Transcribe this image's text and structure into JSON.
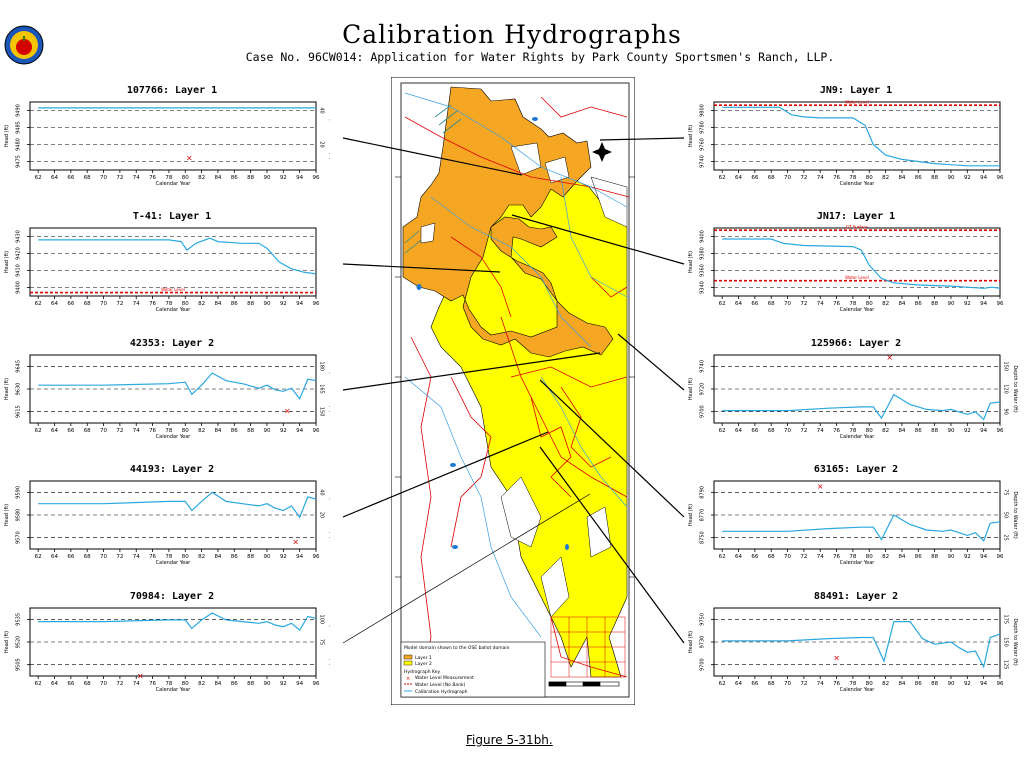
{
  "header": {
    "title": "Calibration Hydrographs",
    "subtitle": "Case No. 96CW014: Application for Water Rights by Park County Sportsmen's Ranch, LLP.",
    "figure_label": "Figure 5-31bh."
  },
  "map_legend": {
    "domain_note": "Model domain shown to the OSE ballot domain",
    "layer1": "Layer 1",
    "layer2": "Layer 2",
    "hydrograph_key": "Hydrograph Key",
    "measurement": "Water Level Measurement",
    "no_bank": "Water Level (No Bank)",
    "calibration": "Calibration Hydrograph"
  },
  "colors": {
    "sim_line": "#2aa8e0",
    "layer1": "#f5a623",
    "layer2": "#ffff00",
    "marker": "#dd0000",
    "water_level": "#dd0000"
  },
  "chart_data": [
    {
      "type": "line",
      "title": "107766: Layer 1",
      "xlabel": "Calendar Year",
      "ylabel": "Head (ft)",
      "ylabel2": "Depth to Water (ft)",
      "xlim": [
        1961,
        1996
      ],
      "x": [
        62,
        64,
        66,
        68,
        70,
        72,
        74,
        76,
        78,
        80,
        82,
        84,
        86,
        88,
        90,
        92,
        94,
        96
      ],
      "ylim": [
        9475,
        9498
      ],
      "yticks": [
        "9475",
        "9480",
        "9485",
        "9490"
      ],
      "yticks2": [
        "",
        "20",
        "",
        "40"
      ],
      "series": [
        {
          "x": [
            1962,
            1970,
            1980,
            1990,
            1996
          ],
          "values": [
            9496,
            9496,
            9496,
            9496,
            9496
          ]
        }
      ],
      "measured": [
        {
          "x": 1980.5,
          "y": 9479
        }
      ],
      "ref_lines": []
    },
    {
      "type": "line",
      "title": "T-41: Layer 1",
      "xlabel": "Calendar Year",
      "ylabel": "Head (ft)",
      "ylabel2": "",
      "xlim": [
        1961,
        1996
      ],
      "x": [
        62,
        64,
        66,
        68,
        70,
        72,
        74,
        76,
        78,
        80,
        82,
        84,
        86,
        88,
        90,
        92,
        94,
        96
      ],
      "ylim": [
        9398,
        9438
      ],
      "yticks": [
        "9400",
        "9410",
        "9420",
        "9430"
      ],
      "yticks2": [],
      "series": [
        {
          "x": [
            1962,
            1968,
            1974,
            1978,
            1979.5,
            1980.2,
            1981.3,
            1983,
            1984,
            1987,
            1989,
            1990,
            1991.5,
            1993,
            1994.5,
            1996
          ],
          "values": [
            9431,
            9431,
            9431,
            9431,
            9430,
            9425,
            9429,
            9432,
            9430,
            9429,
            9429,
            9426,
            9418,
            9414,
            9412,
            9411
          ]
        }
      ],
      "measured": [],
      "ref_lines": [
        {
          "y": 9400,
          "label": "Water Level"
        }
      ]
    },
    {
      "type": "line",
      "title": "42353: Layer 2",
      "xlabel": "Calendar Year",
      "ylabel": "Head (ft)",
      "ylabel2": "Depth to Water (ft)",
      "xlim": [
        1961,
        1996
      ],
      "x": [
        62,
        64,
        66,
        68,
        70,
        72,
        74,
        76,
        78,
        80,
        82,
        84,
        86,
        88,
        90,
        92,
        94,
        96
      ],
      "ylim": [
        9605,
        9650
      ],
      "yticks": [
        "9615",
        "9630",
        "9645"
      ],
      "yticks2": [
        "150",
        "165",
        "180"
      ],
      "series": [
        {
          "x": [
            1962,
            1970,
            1978,
            1980,
            1980.8,
            1982,
            1983.3,
            1985,
            1987,
            1989,
            1990,
            1991,
            1992,
            1993,
            1994,
            1995,
            1996
          ],
          "values": [
            9630,
            9630,
            9631,
            9632,
            9624,
            9630,
            9638,
            9633,
            9631,
            9628,
            9630,
            9627,
            9626,
            9628,
            9621,
            9634,
            9633
          ]
        }
      ],
      "measured": [
        {
          "x": 1992.5,
          "y": 9613
        }
      ],
      "ref_lines": []
    },
    {
      "type": "line",
      "title": "44193: Layer 2",
      "xlabel": "Calendar Year",
      "ylabel": "Head (ft)",
      "ylabel2": "Depth to Water (ft)",
      "xlim": [
        1961,
        1996
      ],
      "x": [
        62,
        64,
        66,
        68,
        70,
        72,
        74,
        76,
        78,
        80,
        82,
        84,
        86,
        88,
        90,
        92,
        94,
        96
      ],
      "ylim": [
        9561,
        9591
      ],
      "yticks": [
        "9570",
        "9580",
        "9590"
      ],
      "yticks2": [
        "",
        "20",
        "40"
      ],
      "series": [
        {
          "x": [
            1962,
            1970,
            1978,
            1980,
            1980.8,
            1982,
            1983.3,
            1985,
            1987,
            1989,
            1990,
            1991,
            1992,
            1993,
            1994,
            1995,
            1996
          ],
          "values": [
            9581,
            9581,
            9582,
            9582,
            9578,
            9582,
            9586,
            9582,
            9581,
            9580,
            9581,
            9579,
            9578,
            9580,
            9575,
            9584,
            9583
          ]
        }
      ],
      "measured": [
        {
          "x": 1993.5,
          "y": 9564
        }
      ],
      "ref_lines": []
    },
    {
      "type": "line",
      "title": "70984: Layer 2",
      "xlabel": "Calendar Year",
      "ylabel": "Head (ft)",
      "ylabel2": "Depth to Water (ft)",
      "xlim": [
        1961,
        1996
      ],
      "x": [
        62,
        64,
        66,
        68,
        70,
        72,
        74,
        76,
        78,
        80,
        82,
        84,
        86,
        88,
        90,
        92,
        94,
        96
      ],
      "ylim": [
        9500,
        9540
      ],
      "yticks": [
        "9505",
        "9520",
        "9535"
      ],
      "yticks2": [
        "",
        "75",
        "100"
      ],
      "series": [
        {
          "x": [
            1962,
            1970,
            1978,
            1980,
            1980.8,
            1982,
            1983.3,
            1985,
            1987,
            1989,
            1990,
            1991,
            1992,
            1993,
            1994,
            1995,
            1996
          ],
          "values": [
            9532,
            9532,
            9533,
            9533,
            9528,
            9533,
            9537,
            9533,
            9532,
            9531,
            9532,
            9530,
            9529,
            9531,
            9527,
            9535,
            9534
          ]
        }
      ],
      "measured": [
        {
          "x": 1974.5,
          "y": 9500
        }
      ],
      "ref_lines": []
    },
    {
      "type": "line",
      "title": "JN9: Layer 1",
      "xlabel": "Calendar Year",
      "ylabel": "Head (ft)",
      "ylabel2": "",
      "xlim": [
        1961,
        1996
      ],
      "x": [
        62,
        64,
        66,
        68,
        70,
        72,
        74,
        76,
        78,
        80,
        82,
        84,
        86,
        88,
        90,
        92,
        94,
        96
      ],
      "ylim": [
        9738,
        9802
      ],
      "yticks": [
        "9740",
        "9760",
        "9780",
        "9800"
      ],
      "yticks2": [],
      "series": [
        {
          "x": [
            1962,
            1969,
            1970.5,
            1972,
            1974,
            1978,
            1979.5,
            1980.5,
            1982,
            1984,
            1986,
            1988,
            1990,
            1992,
            1994,
            1996
          ],
          "values": [
            9797,
            9797,
            9790,
            9788,
            9787,
            9787,
            9780,
            9762,
            9752,
            9748,
            9746,
            9744,
            9743,
            9742,
            9742,
            9742
          ]
        }
      ],
      "measured": [],
      "ref_lines": [
        {
          "y": 9799,
          "label": "Water Level"
        }
      ]
    },
    {
      "type": "line",
      "title": "JN17: Layer 1",
      "xlabel": "Calendar Year",
      "ylabel": "Head (ft)",
      "ylabel2": "",
      "xlim": [
        1961,
        1996
      ],
      "x": [
        62,
        64,
        66,
        68,
        70,
        72,
        74,
        76,
        78,
        80,
        82,
        84,
        86,
        88,
        90,
        92,
        94,
        96
      ],
      "ylim": [
        9340,
        9402
      ],
      "yticks": [
        "9340",
        "9360",
        "9380",
        "9400"
      ],
      "yticks2": [],
      "series": [
        {
          "x": [
            1962,
            1968,
            1969.5,
            1972,
            1978,
            1979,
            1980,
            1981.5,
            1983,
            1986,
            1990,
            1992,
            1994,
            1995,
            1996
          ],
          "values": [
            9392,
            9392,
            9388,
            9386,
            9385,
            9382,
            9368,
            9356,
            9352,
            9350,
            9349,
            9348,
            9347,
            9348,
            9347
          ]
        }
      ],
      "measured": [],
      "ref_lines": [
        {
          "y": 9400,
          "label": "GT Surface"
        },
        {
          "y": 9354,
          "label": "Water Level"
        }
      ]
    },
    {
      "type": "line",
      "title": "125966: Layer 2",
      "xlabel": "Calendar Year",
      "ylabel": "Head (ft)",
      "ylabel2": "Depth to Water (ft)",
      "xlim": [
        1961,
        1996
      ],
      "x": [
        62,
        64,
        66,
        68,
        70,
        72,
        74,
        76,
        78,
        80,
        82,
        84,
        86,
        88,
        90,
        92,
        94,
        96
      ],
      "ylim": [
        9690,
        9745
      ],
      "yticks": [
        "9700",
        "9720",
        "9740"
      ],
      "yticks2": [
        "90",
        "120",
        "150"
      ],
      "series": [
        {
          "x": [
            1962,
            1970,
            1975,
            1979,
            1980.5,
            1981.5,
            1983,
            1985,
            1987,
            1989,
            1990,
            1991,
            1992,
            1993,
            1994,
            1994.8,
            1996
          ],
          "values": [
            9700,
            9700,
            9702,
            9703,
            9703,
            9694,
            9713,
            9705,
            9701,
            9700,
            9701,
            9699,
            9697,
            9699,
            9693,
            9706,
            9707
          ]
        }
      ],
      "measured": [
        {
          "x": 1982.5,
          "y": 9743
        }
      ],
      "ref_lines": []
    },
    {
      "type": "line",
      "title": "63165: Layer 2",
      "xlabel": "Calendar Year",
      "ylabel": "Head (ft)",
      "ylabel2": "Depth to Water (ft)",
      "xlim": [
        1961,
        1996
      ],
      "x": [
        62,
        64,
        66,
        68,
        70,
        72,
        74,
        76,
        78,
        80,
        82,
        84,
        86,
        88,
        90,
        92,
        94,
        96
      ],
      "ylim": [
        8740,
        8790
      ],
      "yticks": [
        "8750",
        "8770",
        "8790"
      ],
      "yticks2": [
        "25",
        "50",
        "75"
      ],
      "series": [
        {
          "x": [
            1962,
            1970,
            1975,
            1979,
            1980.5,
            1981.5,
            1983,
            1985,
            1987,
            1989,
            1990,
            1991,
            1992,
            1993,
            1994,
            1994.8,
            1996
          ],
          "values": [
            8753,
            8753,
            8755,
            8756,
            8756,
            8747,
            8765,
            8758,
            8754,
            8753,
            8754,
            8752,
            8750,
            8752,
            8746,
            8759,
            8760
          ]
        }
      ],
      "measured": [
        {
          "x": 1974,
          "y": 8786
        }
      ],
      "ref_lines": []
    },
    {
      "type": "line",
      "title": "88491: Layer 2",
      "xlabel": "Calendar Year",
      "ylabel": "Head (ft)",
      "ylabel2": "Depth to Water (ft)",
      "xlim": [
        1961,
        1996
      ],
      "x": [
        62,
        64,
        66,
        68,
        70,
        72,
        74,
        76,
        78,
        80,
        82,
        84,
        86,
        88,
        90,
        92,
        94,
        96
      ],
      "ylim": [
        9700,
        9760
      ],
      "yticks": [
        "9700",
        "9730",
        "9750"
      ],
      "yticks2": [
        "125",
        "150",
        "175"
      ],
      "series": [
        {
          "x": [
            1962,
            1970,
            1975,
            1979,
            1980.5,
            1981.8,
            1983,
            1985,
            1986.5,
            1988,
            1990,
            1991,
            1992,
            1993,
            1994,
            1994.8,
            1996
          ],
          "values": [
            9731,
            9731,
            9733,
            9734,
            9734,
            9713,
            9748,
            9748,
            9733,
            9728,
            9730,
            9725,
            9721,
            9722,
            9708,
            9734,
            9737
          ]
        }
      ],
      "measured": [
        {
          "x": 1976,
          "y": 9716
        }
      ],
      "ref_lines": []
    }
  ]
}
